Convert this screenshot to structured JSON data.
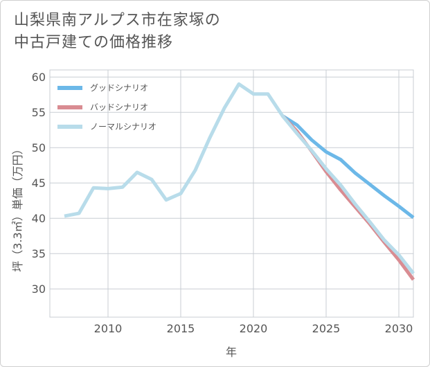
{
  "chart_data": {
    "type": "line",
    "title_lines": [
      "山梨県南アルプス市在家塚の",
      "中古戸建ての価格推移"
    ],
    "xlabel": "年",
    "ylabel": "坪（3.3㎡）単価（万円）",
    "xlim": [
      2006,
      2031
    ],
    "ylim": [
      26,
      61
    ],
    "x_ticks": [
      2010,
      2015,
      2020,
      2025,
      2030
    ],
    "y_ticks": [
      30,
      35,
      40,
      45,
      50,
      55,
      60
    ],
    "series": [
      {
        "name": "グッドシナリオ",
        "color": "#6cb8e8",
        "x": [
          2022,
          2023,
          2024,
          2025,
          2026,
          2027,
          2028,
          2029,
          2030,
          2031
        ],
        "values": [
          54.5,
          53.2,
          51.1,
          49.4,
          48.3,
          46.4,
          44.8,
          43.2,
          41.7,
          40.1
        ]
      },
      {
        "name": "バッドシナリオ",
        "color": "#d98c92",
        "x": [
          2022,
          2023,
          2024,
          2025,
          2026,
          2027,
          2028,
          2029,
          2030,
          2031
        ],
        "values": [
          54.5,
          52.3,
          49.5,
          46.6,
          44.0,
          41.6,
          39.2,
          36.6,
          34.1,
          31.3
        ]
      },
      {
        "name": "ノーマルシナリオ",
        "color": "#b8dcea",
        "x": [
          2007,
          2008,
          2009,
          2010,
          2011,
          2012,
          2013,
          2014,
          2015,
          2016,
          2017,
          2018,
          2019,
          2020,
          2021,
          2022,
          2023,
          2024,
          2025,
          2026,
          2027,
          2028,
          2029,
          2030,
          2031
        ],
        "values": [
          40.3,
          40.7,
          44.3,
          44.2,
          44.4,
          46.5,
          45.5,
          42.6,
          43.5,
          46.8,
          51.4,
          55.6,
          59.0,
          57.6,
          57.6,
          54.5,
          52.0,
          49.6,
          47.0,
          44.7,
          42.0,
          39.5,
          36.9,
          34.8,
          32.2
        ]
      }
    ]
  }
}
